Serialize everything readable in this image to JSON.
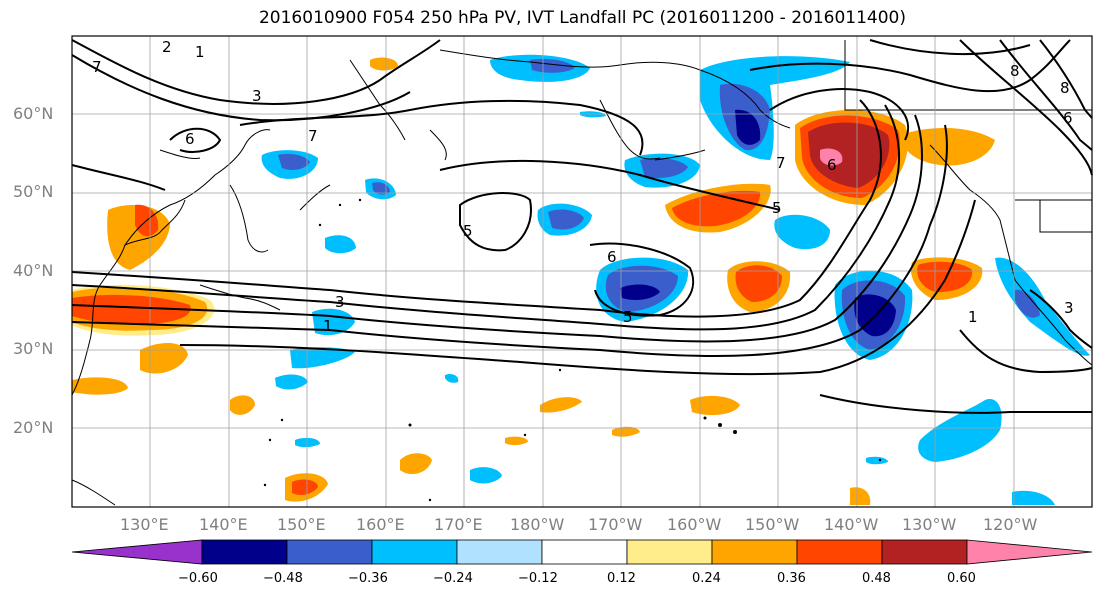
{
  "title": "2016010900 F054 250 hPa PV, IVT Landfall PC (2016011200 - 2016011400)",
  "lat_labels": [
    "60°N",
    "50°N",
    "40°N",
    "30°N",
    "20°N"
  ],
  "lon_labels": [
    "130°E",
    "140°E",
    "150°E",
    "160°E",
    "170°E",
    "180°W",
    "170°W",
    "160°W",
    "150°W",
    "140°W",
    "130°W",
    "120°W"
  ],
  "colorbar": {
    "ticks": [
      "−0.60",
      "−0.48",
      "−0.36",
      "−0.24",
      "−0.12",
      "0.12",
      "0.24",
      "0.36",
      "0.48",
      "0.60"
    ],
    "colors": [
      "#9932cc",
      "#00008b",
      "#3a5fcd",
      "#00bfff",
      "#b0e2ff",
      "#ffffff",
      "#ffec8b",
      "#ffa500",
      "#ff4500",
      "#b22222",
      "#ff82ab"
    ]
  },
  "contour_labels": [
    "1",
    "2",
    "3",
    "3",
    "1",
    "6",
    "7",
    "5",
    "6",
    "5",
    "5",
    "7",
    "6",
    "8",
    "1",
    "3",
    "8",
    "6",
    "7"
  ],
  "colors": {
    "grid": "#a0a0a0",
    "contour": "#000000",
    "label": "#808080"
  }
}
